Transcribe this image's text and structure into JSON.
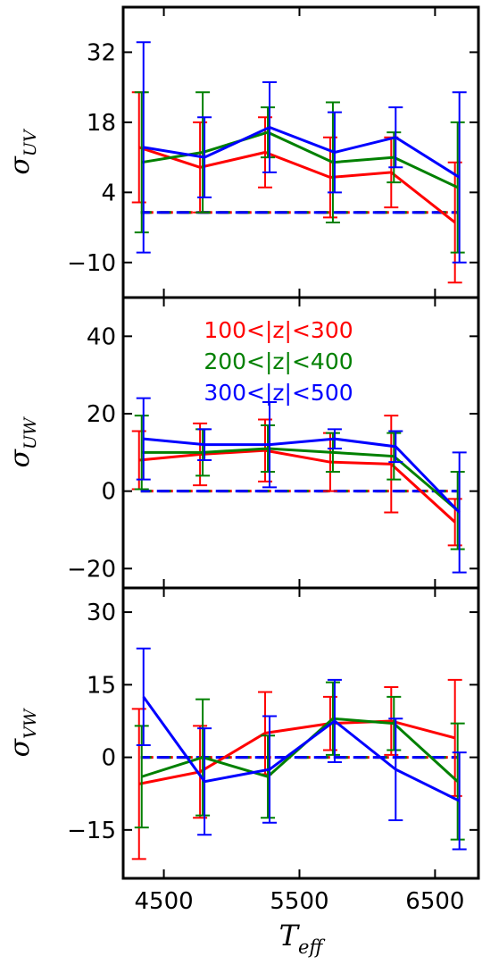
{
  "chart_data": {
    "type": "line",
    "x": [
      4330,
      4780,
      5260,
      5740,
      6190,
      6660
    ],
    "xlim": [
      4200,
      6820
    ],
    "xticks": [
      4500,
      5500,
      6500
    ],
    "xticklabels": [
      "4500",
      "5500",
      "6500"
    ],
    "xlabel_main": "T",
    "xlabel_sub": "eff",
    "legend": [
      {
        "label": "100<|z|<300",
        "color": "#ff0000"
      },
      {
        "label": "200<|z|<400",
        "color": "#008000"
      },
      {
        "label": "300<|z|<500",
        "color": "#0000ff"
      }
    ],
    "panels": [
      {
        "ylabel_main": "σ",
        "ylabel_sub": "UV",
        "ylim": [
          -17,
          41
        ],
        "yticks": [
          32,
          18,
          4,
          -10
        ],
        "yticklabels": [
          "32",
          "18",
          "4",
          "−10"
        ],
        "reference_line": 0,
        "series": [
          {
            "color": "#ff0000",
            "values": [
              13,
              9,
              12,
              7,
              8,
              -2
            ],
            "errors": [
              11,
              9,
              7,
              8,
              7,
              12
            ]
          },
          {
            "color": "#008000",
            "values": [
              10,
              12,
              16,
              10,
              11,
              5
            ],
            "errors": [
              14,
              12,
              5,
              12,
              5,
              13
            ]
          },
          {
            "color": "#0000ff",
            "values": [
              13,
              11,
              17,
              12,
              15,
              7
            ],
            "errors": [
              21,
              8,
              9,
              8,
              6,
              17
            ]
          }
        ]
      },
      {
        "ylabel_main": "σ",
        "ylabel_sub": "UW",
        "ylim": [
          -25,
          50
        ],
        "yticks": [
          40,
          20,
          0,
          -20
        ],
        "yticklabels": [
          "40",
          "20",
          "0",
          "−20"
        ],
        "reference_line": 0,
        "series": [
          {
            "color": "#ff0000",
            "values": [
              8,
              9.5,
              10.5,
              7.5,
              7,
              -8
            ],
            "errors": [
              7.5,
              8,
              8,
              7.5,
              12.5,
              6
            ]
          },
          {
            "color": "#008000",
            "values": [
              10,
              10,
              11,
              10,
              9,
              -5
            ],
            "errors": [
              9.5,
              6,
              6,
              5,
              6,
              10
            ]
          },
          {
            "color": "#0000ff",
            "values": [
              13.5,
              12,
              12,
              13.5,
              11.5,
              -5.5
            ],
            "errors": [
              10.5,
              4,
              11,
              2.5,
              4,
              15.5
            ]
          }
        ]
      },
      {
        "ylabel_main": "σ",
        "ylabel_sub": "VW",
        "ylim": [
          -25,
          35
        ],
        "yticks": [
          30,
          15,
          0,
          -15
        ],
        "yticklabels": [
          "30",
          "15",
          "0",
          "−15"
        ],
        "reference_line": 0,
        "series": [
          {
            "color": "#ff0000",
            "values": [
              -5.5,
              -3,
              5,
              7,
              7.5,
              4
            ],
            "errors": [
              15.5,
              9.5,
              8.5,
              5.5,
              7,
              12
            ]
          },
          {
            "color": "#008000",
            "values": [
              -4,
              0,
              -4,
              8,
              7,
              -5
            ],
            "errors": [
              10.5,
              12,
              8.5,
              7.5,
              5.5,
              12
            ]
          },
          {
            "color": "#0000ff",
            "values": [
              12.5,
              -5,
              -2.5,
              7.5,
              -2.5,
              -9
            ],
            "errors": [
              10,
              11,
              11,
              8.5,
              10.5,
              10
            ]
          }
        ]
      }
    ]
  }
}
